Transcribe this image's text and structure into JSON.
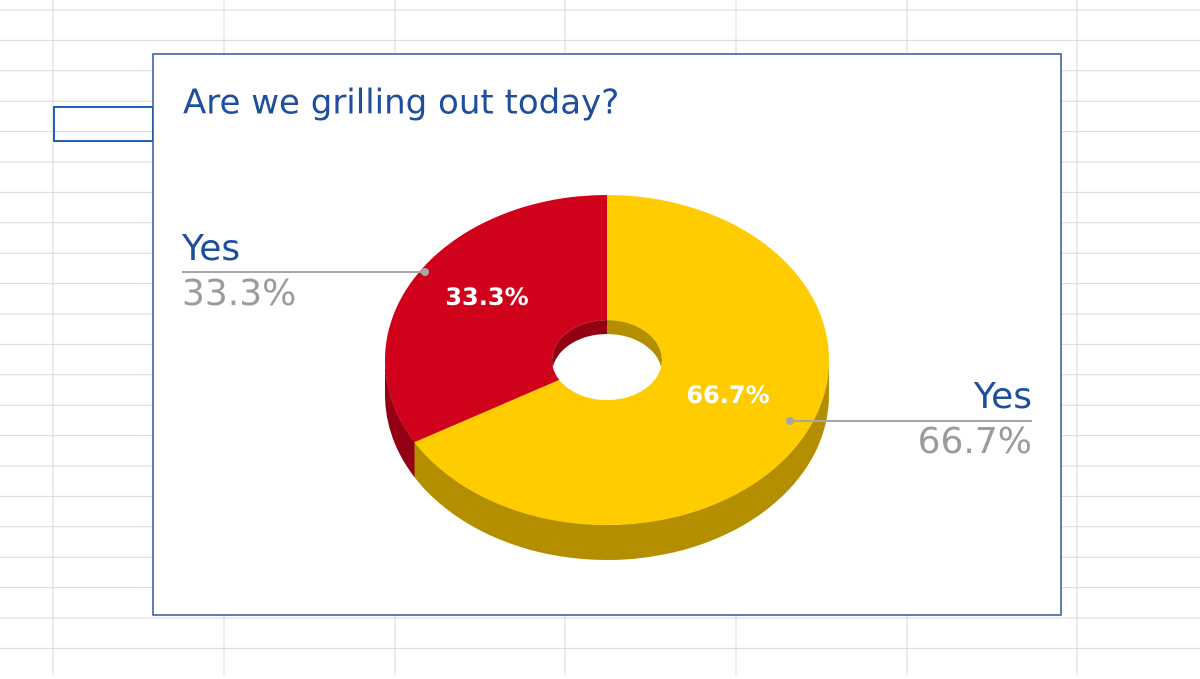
{
  "chart_data": {
    "type": "donut3d",
    "title": "Are we grilling out today?",
    "categories": [
      "Yes",
      "Yes"
    ],
    "values": [
      33.3,
      66.7
    ],
    "value_labels": [
      "33.3%",
      "66.7%"
    ],
    "colors": [
      "#d0021b",
      "#ffcc00"
    ]
  }
}
